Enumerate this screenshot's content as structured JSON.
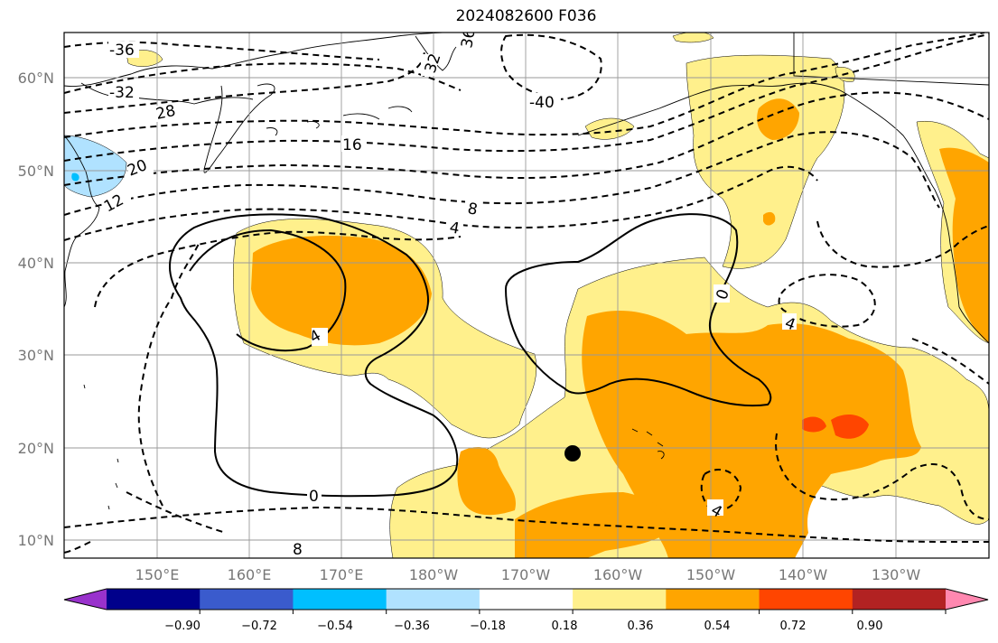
{
  "title": "2024082600 F036",
  "axes": {
    "lat_ticks": [
      "10°N",
      "20°N",
      "30°N",
      "40°N",
      "50°N",
      "60°N"
    ],
    "lon_ticks": [
      "150°E",
      "160°E",
      "170°E",
      "180°W",
      "170°W",
      "160°W",
      "150°W",
      "140°W",
      "130°W"
    ]
  },
  "colorbar": {
    "colors": [
      "#9932cc",
      "#00008b",
      "#3a5bcd",
      "#00bfff",
      "#b0e2ff",
      "#ffffff",
      "#fff08c",
      "#ffa500",
      "#ff4500",
      "#b22222",
      "#ff88b0"
    ],
    "tick_labels": [
      "−0.90",
      "−0.72",
      "−0.54",
      "−0.36",
      "−0.18",
      "0.18",
      "0.36",
      "0.54",
      "0.72",
      "0.90"
    ]
  },
  "contour_labels": [
    "-36",
    "36",
    "32",
    "-32",
    "28",
    "-40",
    "16",
    "20",
    "12",
    "8",
    "4",
    "4",
    "0",
    "4",
    "0",
    "4",
    "8"
  ],
  "colors": {
    "light_fill": "#fff08c",
    "orange_fill": "#ffa500",
    "red_fill": "#ff4500",
    "blue_fill": "#b0e2ff",
    "cyan_fill": "#00bfff"
  }
}
